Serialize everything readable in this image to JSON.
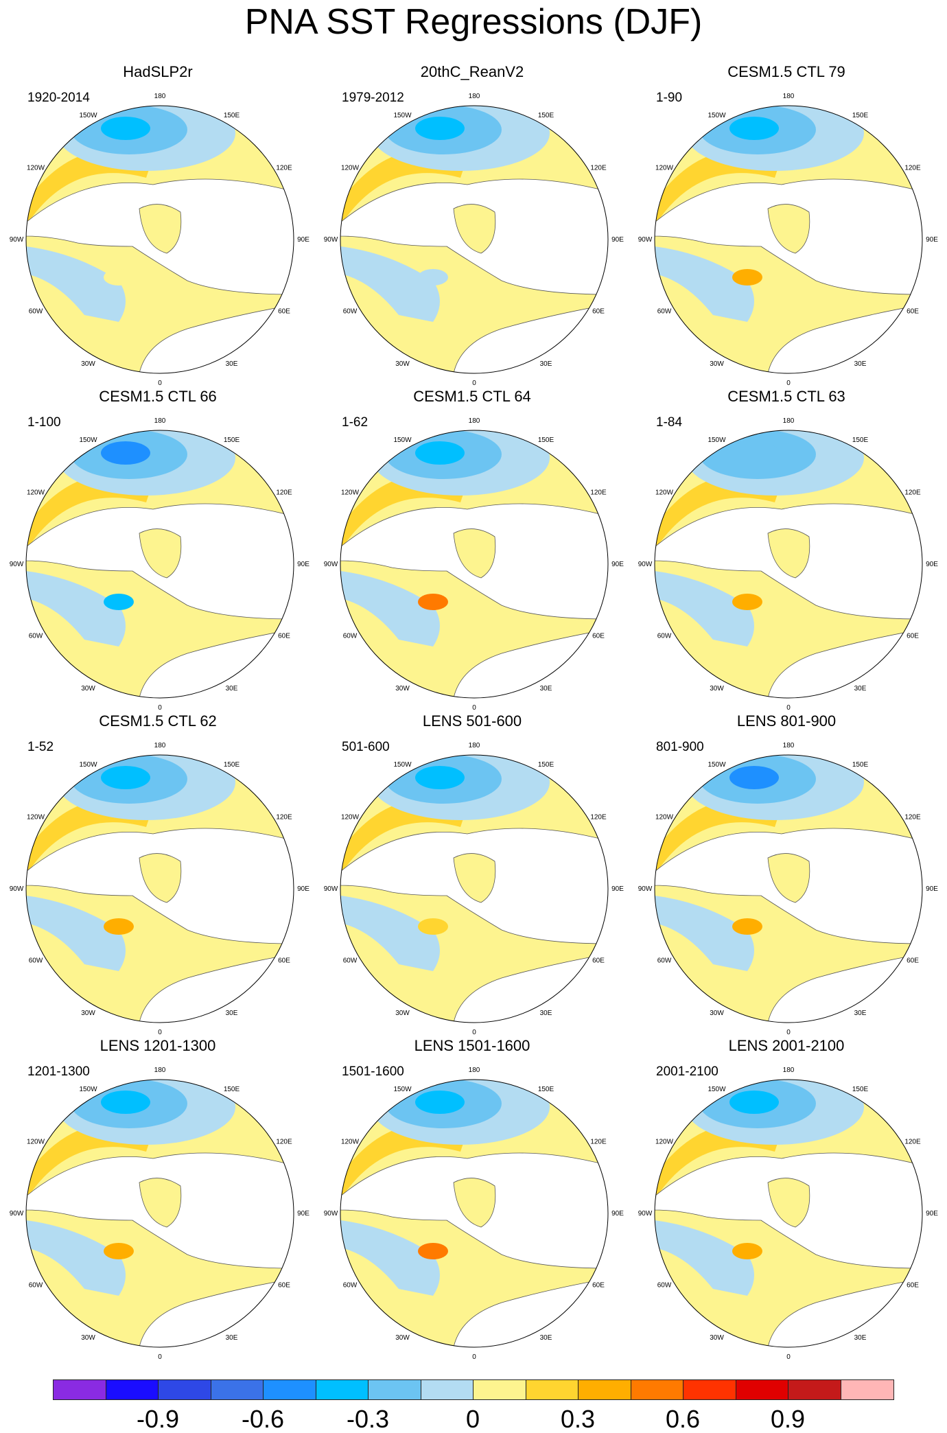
{
  "title": "PNA SST Regressions (DJF)",
  "longitude_labels": {
    "lon180": "180",
    "lon150e": "150E",
    "lon120e": "120E",
    "lon90e": "90E",
    "lon60e": "60E",
    "lon30e": "30E",
    "lon0": "0",
    "lon30w": "30W",
    "lon60w": "60W",
    "lon90w": "90W",
    "lon120w": "120W",
    "lon150w": "150W"
  },
  "panels": [
    {
      "title": "HadSLP2r",
      "period": "1920-2014",
      "pacific_center_value": -0.45,
      "na_feature_value": 0.0
    },
    {
      "title": "20thC_ReanV2",
      "period": "1979-2012",
      "pacific_center_value": -0.35,
      "na_feature_value": -0.15
    },
    {
      "title": "CESM1.5 CTL 79",
      "period": "1-90",
      "pacific_center_value": -0.45,
      "na_feature_value": 0.3
    },
    {
      "title": "CESM1.5 CTL 66",
      "period": "1-100",
      "pacific_center_value": -0.55,
      "na_feature_value": -0.45
    },
    {
      "title": "CESM1.5 CTL 64",
      "period": "1-62",
      "pacific_center_value": -0.4,
      "na_feature_value": 0.45
    },
    {
      "title": "CESM1.5 CTL 63",
      "period": "1-84",
      "pacific_center_value": -0.25,
      "na_feature_value": 0.3
    },
    {
      "title": "CESM1.5 CTL 62",
      "period": "1-52",
      "pacific_center_value": -0.4,
      "na_feature_value": 0.3
    },
    {
      "title": "LENS 501-600",
      "period": "501-600",
      "pacific_center_value": -0.4,
      "na_feature_value": 0.15
    },
    {
      "title": "LENS 801-900",
      "period": "801-900",
      "pacific_center_value": -0.5,
      "na_feature_value": 0.3
    },
    {
      "title": "LENS 1201-1300",
      "period": "1201-1300",
      "pacific_center_value": -0.35,
      "na_feature_value": 0.3
    },
    {
      "title": "LENS 1501-1600",
      "period": "1501-1600",
      "pacific_center_value": -0.35,
      "na_feature_value": 0.45
    },
    {
      "title": "LENS 2001-2100",
      "period": "2001-2100",
      "pacific_center_value": -0.45,
      "na_feature_value": 0.3
    }
  ],
  "colorbar": {
    "colors": [
      "#8a2be2",
      "#1a0dff",
      "#2e48e6",
      "#3b72e8",
      "#1e90ff",
      "#00bfff",
      "#6cc4f2",
      "#b3dcf2",
      "#fdf48f",
      "#ffd530",
      "#ffae00",
      "#ff7a00",
      "#ff3300",
      "#e00000",
      "#c41a1a",
      "#ffb6b6"
    ],
    "ticks": [
      "-0.9",
      "-0.6",
      "-0.3",
      "0",
      "0.3",
      "0.6",
      "0.9"
    ],
    "tick_values": [
      -0.9,
      -0.6,
      -0.3,
      0,
      0.3,
      0.6,
      0.9
    ],
    "min": -1.2,
    "max": 1.2,
    "step": 0.15
  }
}
